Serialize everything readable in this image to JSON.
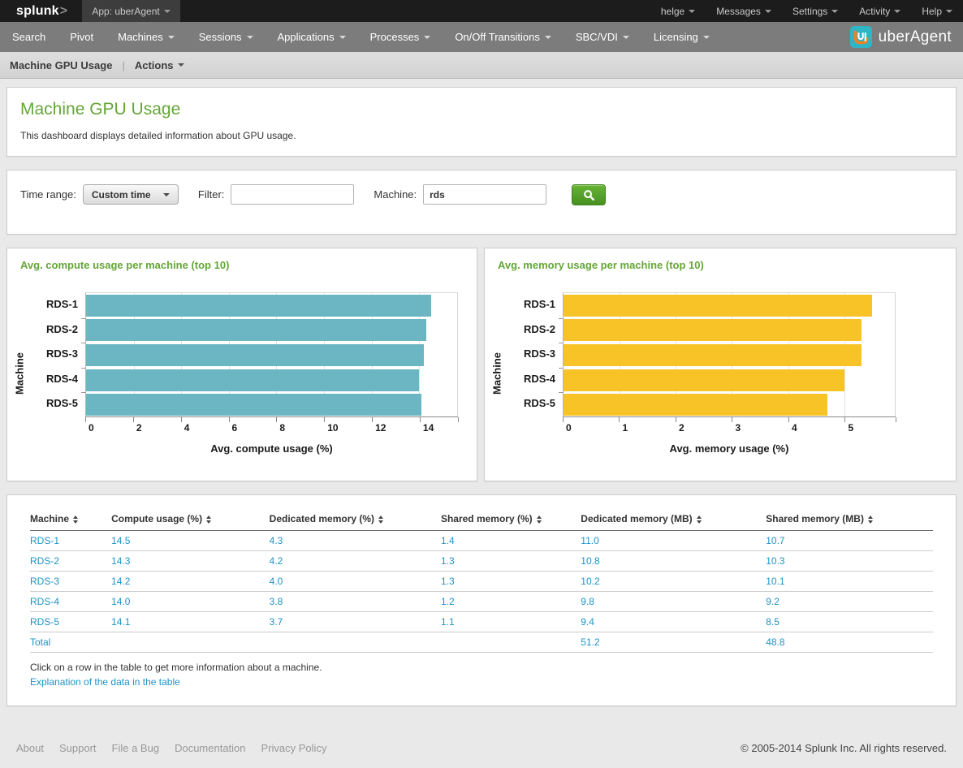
{
  "topbar": {
    "logo_text": "splunk",
    "logo_caret": ">",
    "app_label": "App: uberAgent",
    "menus": [
      {
        "label": "helge"
      },
      {
        "label": "Messages"
      },
      {
        "label": "Settings"
      },
      {
        "label": "Activity"
      },
      {
        "label": "Help"
      }
    ]
  },
  "navbar": {
    "items": [
      {
        "label": "Search",
        "dropdown": false
      },
      {
        "label": "Pivot",
        "dropdown": false
      },
      {
        "label": "Machines",
        "dropdown": true
      },
      {
        "label": "Sessions",
        "dropdown": true
      },
      {
        "label": "Applications",
        "dropdown": true
      },
      {
        "label": "Processes",
        "dropdown": true
      },
      {
        "label": "On/Off Transitions",
        "dropdown": true
      },
      {
        "label": "SBC/VDI",
        "dropdown": true
      },
      {
        "label": "Licensing",
        "dropdown": true
      }
    ],
    "brand": "uberAgent"
  },
  "breadcrumb": {
    "title": "Machine GPU Usage",
    "separator": "|",
    "actions_label": "Actions"
  },
  "header_panel": {
    "title": "Machine GPU Usage",
    "description": "This dashboard displays detailed information about GPU usage."
  },
  "filters": {
    "time_range_label": "Time range:",
    "time_range_value": "Custom time",
    "filter_label": "Filter:",
    "filter_value": "",
    "machine_label": "Machine:",
    "machine_value": "rds"
  },
  "chart_data": [
    {
      "type": "bar",
      "orientation": "horizontal",
      "title": "Avg. compute usage per machine (top 10)",
      "categories": [
        "RDS-1",
        "RDS-2",
        "RDS-3",
        "RDS-4",
        "RDS-5"
      ],
      "values": [
        14.5,
        14.3,
        14.2,
        14.0,
        14.1
      ],
      "xlabel": "Avg. compute usage (%)",
      "ylabel": "Machine",
      "xlim": [
        0,
        15.6
      ],
      "xticks": [
        0,
        2,
        4,
        6,
        8,
        10,
        12,
        14
      ],
      "grid": true,
      "legend": "none",
      "bar_color": "#6cb6c3"
    },
    {
      "type": "bar",
      "orientation": "horizontal",
      "title": "Avg. memory usage per machine (top 10)",
      "categories": [
        "RDS-1",
        "RDS-2",
        "RDS-3",
        "RDS-4",
        "RDS-5"
      ],
      "values": [
        5.5,
        5.3,
        5.3,
        5.0,
        4.7
      ],
      "xlabel": "Avg. memory usage (%)",
      "ylabel": "Machine",
      "xlim": [
        0,
        5.9
      ],
      "xticks": [
        0,
        1,
        2,
        3,
        4,
        5
      ],
      "grid": true,
      "legend": "none",
      "bar_color": "#f8c326"
    }
  ],
  "table": {
    "columns": [
      "Machine",
      "Compute usage (%)",
      "Dedicated memory (%)",
      "Shared memory (%)",
      "Dedicated memory (MB)",
      "Shared memory (MB)"
    ],
    "rows": [
      [
        "RDS-1",
        "14.5",
        "4.3",
        "1.4",
        "11.0",
        "10.7"
      ],
      [
        "RDS-2",
        "14.3",
        "4.2",
        "1.3",
        "10.8",
        "10.3"
      ],
      [
        "RDS-3",
        "14.2",
        "4.0",
        "1.3",
        "10.2",
        "10.1"
      ],
      [
        "RDS-4",
        "14.0",
        "3.8",
        "1.2",
        "9.8",
        "9.2"
      ],
      [
        "RDS-5",
        "14.1",
        "3.7",
        "1.1",
        "9.4",
        "8.5"
      ]
    ],
    "total_row": [
      "Total",
      "",
      "",
      "",
      "51.2",
      "48.8"
    ],
    "note": "Click on a row in the table to get more information about a machine.",
    "link": "Explanation of the data in the table"
  },
  "footer": {
    "links": [
      "About",
      "Support",
      "File a Bug",
      "Documentation",
      "Privacy Policy"
    ],
    "copyright": "© 2005-2014 Splunk Inc. All rights reserved."
  },
  "icons": {
    "search": "magnifier-glass",
    "dropdown_caret": "triangle-down",
    "sort": "triangle-up-down",
    "brand_glyph": "uberagent-ua-mark"
  },
  "colors": {
    "accent_green": "#65a637",
    "bar_teal": "#6cb6c3",
    "bar_yellow": "#f8c326",
    "link_blue": "#1e93c6",
    "button_green": "#479021",
    "brand_cyan": "#2eb6c7",
    "brand_orange": "#f08122"
  }
}
